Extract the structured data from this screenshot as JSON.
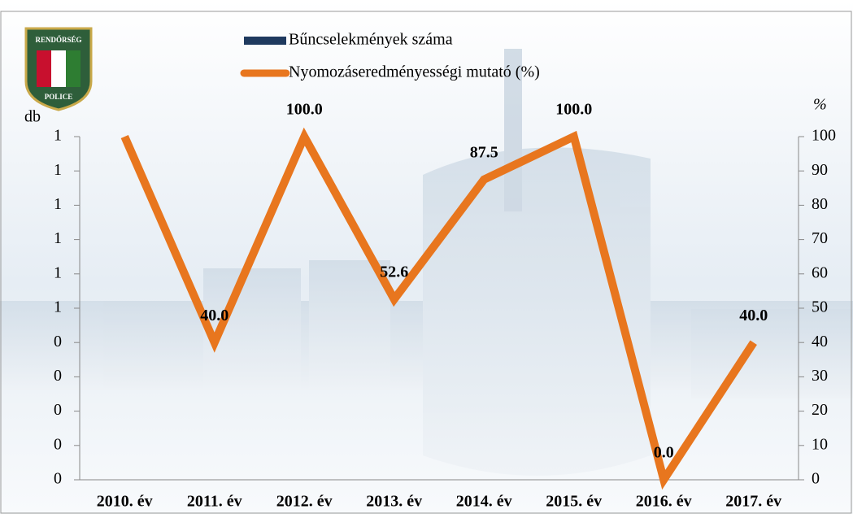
{
  "logo": {
    "top": "RENDŐRSÉG",
    "bottom": "POLICE"
  },
  "chart_data": {
    "type": "bar-line",
    "y_label": "db",
    "y2_label": "%",
    "categories": [
      "2010. év",
      "2011. év",
      "2012. év",
      "2013. év",
      "2014. év",
      "2015. év",
      "2016. év",
      "2017. év"
    ],
    "series": [
      {
        "name": "Bűncselekmények száma",
        "color": "#1f3a5f",
        "type": "bar",
        "values": [
          null,
          null,
          null,
          null,
          null,
          null,
          null,
          null
        ]
      },
      {
        "name": "Nyomozáseredményességi mutató (%)",
        "color": "#e8761e",
        "type": "line",
        "axis": "y2",
        "values": [
          100,
          40,
          100,
          52.6,
          87.5,
          100,
          0,
          40
        ],
        "value_labels": [
          null,
          "40.0",
          "100.0",
          "52.6",
          "87.5",
          "100.0",
          "0.0",
          "40.0"
        ]
      }
    ],
    "ylim": [
      0,
      1
    ],
    "yticks": [
      0,
      {
        "value": 0.1,
        "label": "0"
      },
      {
        "value": 0.2,
        "label": "0"
      },
      {
        "value": 0.3,
        "label": "0"
      },
      {
        "value": 0.4,
        "label": "0"
      },
      {
        "value": 0.5,
        "label": "1"
      },
      {
        "value": 0.6,
        "label": "1"
      },
      {
        "value": 0.7,
        "label": "1"
      },
      {
        "value": 0.8,
        "label": "1"
      },
      {
        "value": 0.9,
        "label": "1"
      },
      {
        "value": 1.0,
        "label": "1"
      }
    ],
    "y2lim": [
      0,
      100
    ],
    "y2ticks": [
      0,
      10,
      20,
      30,
      40,
      50,
      60,
      70,
      80,
      90,
      100
    ]
  }
}
